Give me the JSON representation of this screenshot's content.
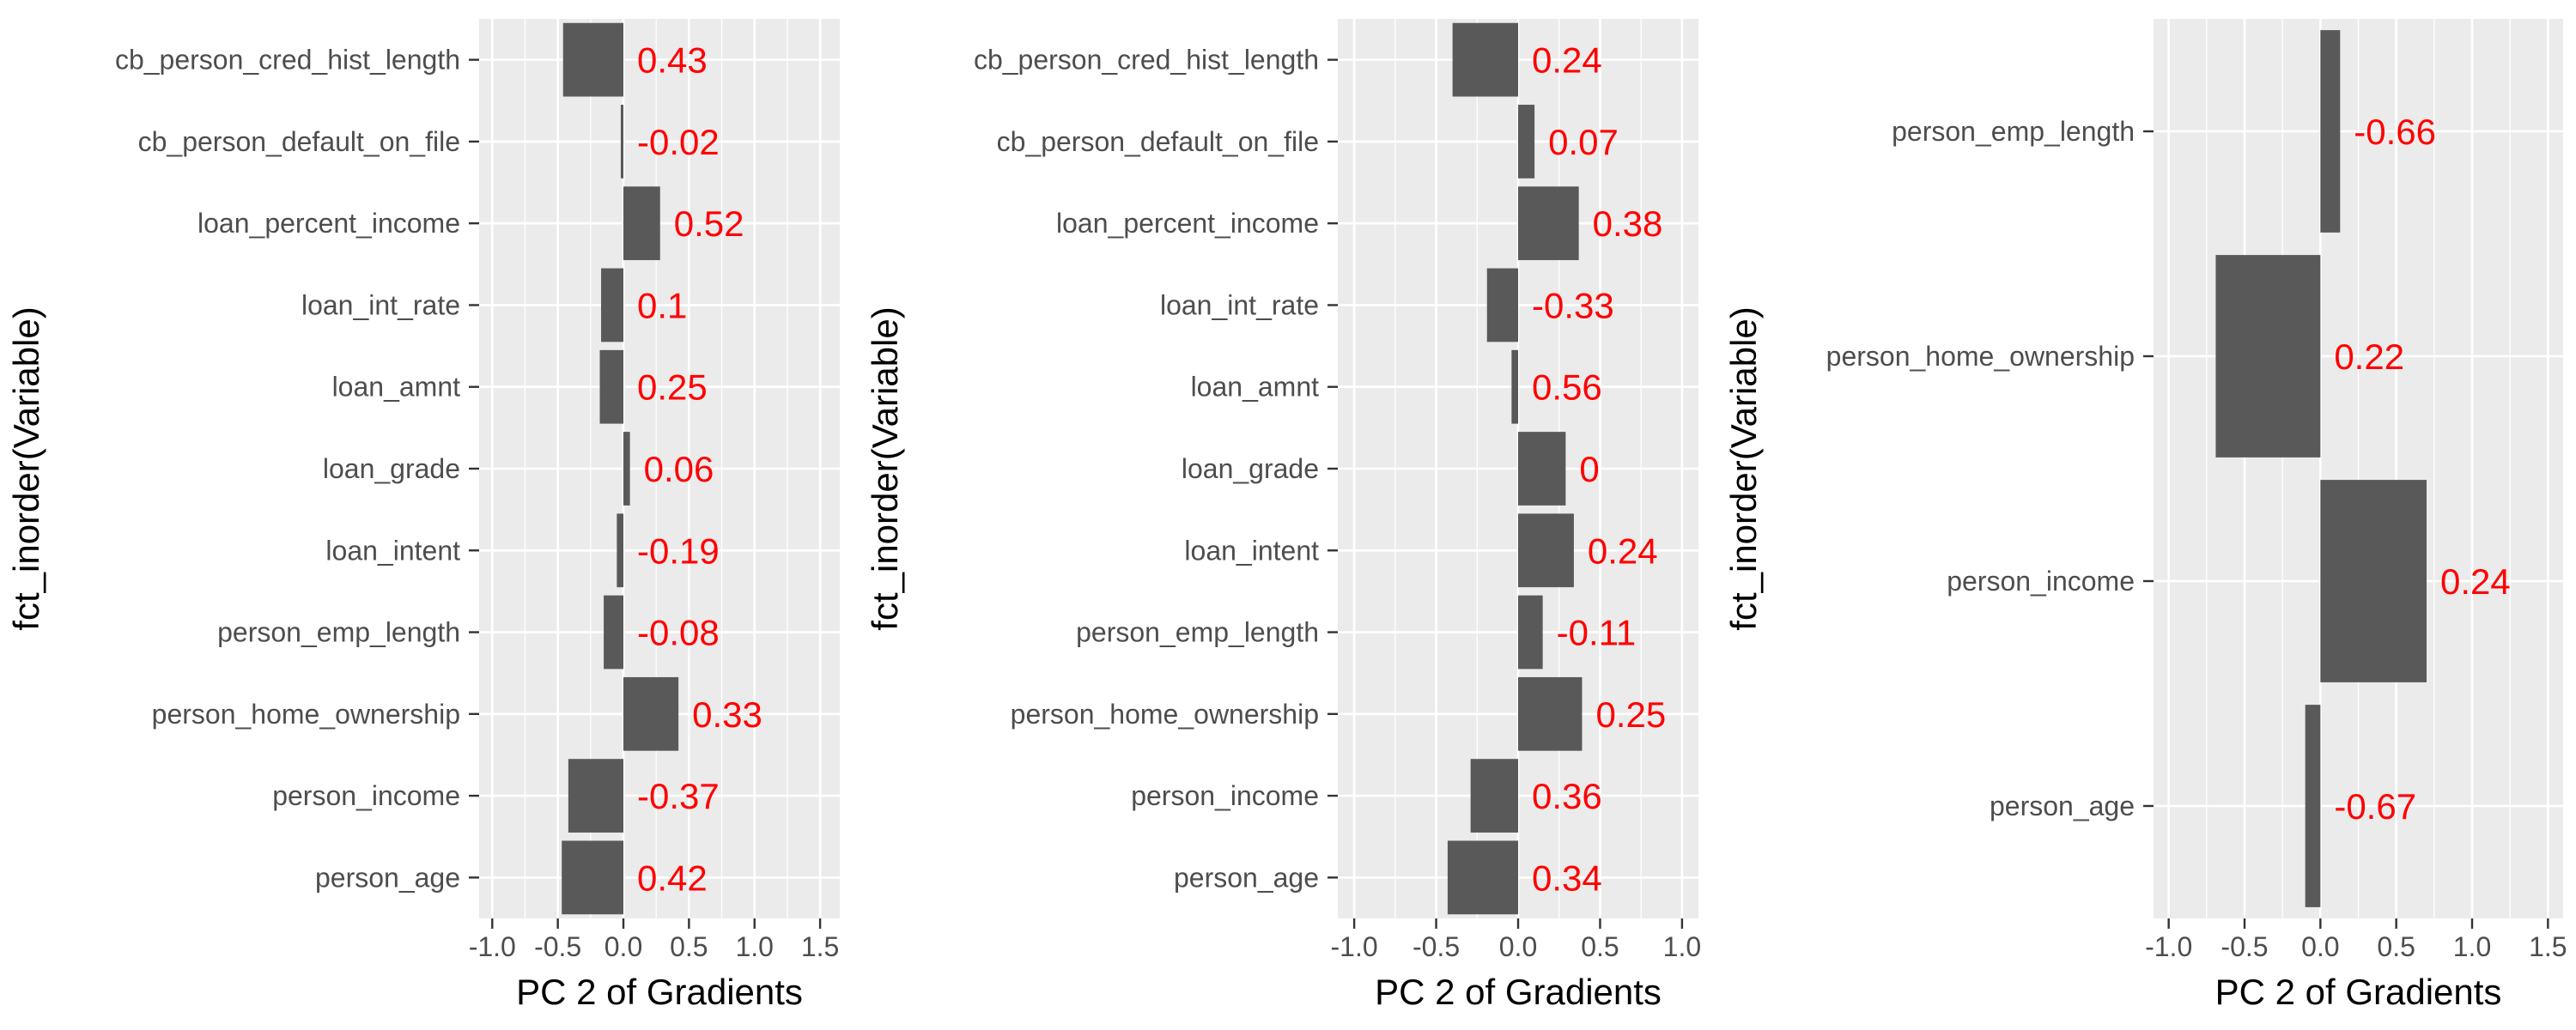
{
  "chart_data": [
    {
      "type": "bar",
      "orientation": "horizontal",
      "categories": [
        "person_age",
        "person_income",
        "person_home_ownership",
        "person_emp_length",
        "loan_intent",
        "loan_grade",
        "loan_amnt",
        "loan_int_rate",
        "loan_percent_income",
        "cb_person_default_on_file",
        "cb_person_cred_hist_length"
      ],
      "values": [
        -0.47,
        -0.42,
        0.42,
        -0.15,
        -0.05,
        0.05,
        -0.18,
        -0.17,
        0.28,
        -0.02,
        -0.46
      ],
      "data_labels": [
        "0.42",
        "-0.37",
        "0.33",
        "-0.08",
        "-0.19",
        "0.06",
        "0.25",
        "0.1",
        "0.52",
        "-0.02",
        "0.43"
      ],
      "xlabel": "PC 2 of Gradients",
      "ylabel": "fct_inorder(Variable)",
      "xlim": [
        -1.1,
        1.65
      ],
      "xticks": [
        "-1.0",
        "-0.5",
        "0.0",
        "0.5",
        "1.0",
        "1.5"
      ],
      "xtick_values": [
        -1.0,
        -0.5,
        0.0,
        0.5,
        1.0,
        1.5
      ]
    },
    {
      "type": "bar",
      "orientation": "horizontal",
      "categories": [
        "person_age",
        "person_income",
        "person_home_ownership",
        "person_emp_length",
        "loan_intent",
        "loan_grade",
        "loan_amnt",
        "loan_int_rate",
        "loan_percent_income",
        "cb_person_default_on_file",
        "cb_person_cred_hist_length"
      ],
      "values": [
        -0.43,
        -0.29,
        0.39,
        0.15,
        0.34,
        0.29,
        -0.04,
        -0.19,
        0.37,
        0.1,
        -0.4
      ],
      "data_labels": [
        "0.34",
        "0.36",
        "0.25",
        "-0.11",
        "0.24",
        "0",
        "0.56",
        "-0.33",
        "0.38",
        "0.07",
        "0.24"
      ],
      "xlabel": "PC 2 of Gradients",
      "ylabel": "fct_inorder(Variable)",
      "xlim": [
        -1.1,
        1.1
      ],
      "xticks": [
        "-1.0",
        "-0.5",
        "0.0",
        "0.5",
        "1.0"
      ],
      "xtick_values": [
        -1.0,
        -0.5,
        0.0,
        0.5,
        1.0
      ]
    },
    {
      "type": "bar",
      "orientation": "horizontal",
      "categories": [
        "person_age",
        "person_income",
        "person_home_ownership",
        "person_emp_length"
      ],
      "values": [
        -0.1,
        0.7,
        -0.69,
        0.13
      ],
      "data_labels": [
        "-0.67",
        "0.24",
        "0.22",
        "-0.66"
      ],
      "xlabel": "PC 2 of Gradients",
      "ylabel": "fct_inorder(Variable)",
      "xlim": [
        -1.1,
        1.6
      ],
      "xticks": [
        "-1.0",
        "-0.5",
        "0.0",
        "0.5",
        "1.0",
        "1.5"
      ],
      "xtick_values": [
        -1.0,
        -0.5,
        0.0,
        0.5,
        1.0,
        1.5
      ]
    }
  ],
  "colors": {
    "panel_background": "#ebebeb",
    "bar_fill": "#595959",
    "label_color": "#ff0000",
    "gridline": "#ffffff"
  }
}
